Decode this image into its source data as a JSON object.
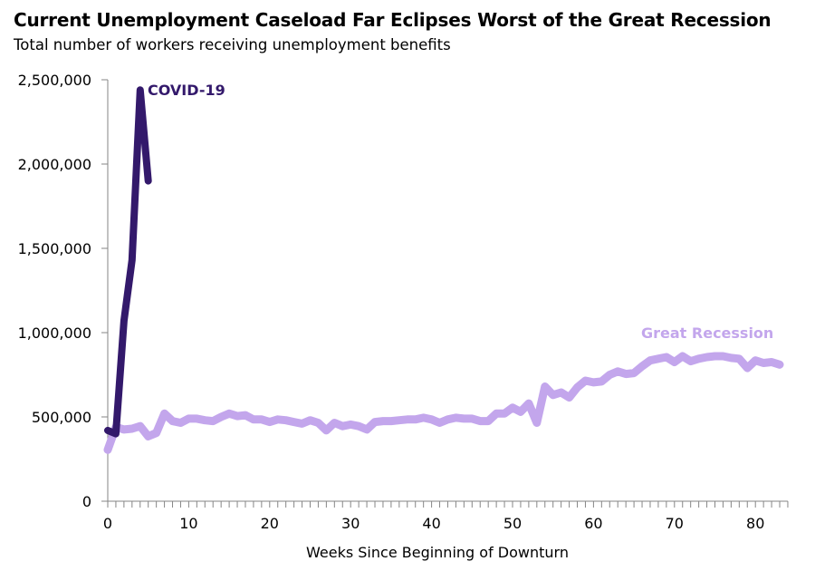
{
  "chart_data": {
    "type": "line",
    "title": "Current Unemployment Caseload Far Eclipses Worst of the Great Recession",
    "subtitle": "Total number of workers receiving unemployment benefits",
    "xlabel": "Weeks Since Beginning of Downturn",
    "ylabel": "",
    "xlim": [
      0,
      84
    ],
    "ylim": [
      0,
      2500000
    ],
    "x_ticks": [
      0,
      10,
      20,
      30,
      40,
      50,
      60,
      70,
      80
    ],
    "x_tick_labels": [
      "0",
      "10",
      "20",
      "30",
      "40",
      "50",
      "60",
      "70",
      "80"
    ],
    "y_ticks": [
      0,
      500000,
      1000000,
      1500000,
      2000000,
      2500000
    ],
    "y_tick_labels": [
      "0",
      "500,000",
      "1,000,000",
      "1,500,000",
      "2,000,000",
      "2,500,000"
    ],
    "grid": false,
    "legend": "inline labels",
    "series": [
      {
        "name": "Great Recession",
        "label": "Great Recession",
        "color": "#C3A6EC",
        "x": [
          0,
          1,
          2,
          3,
          4,
          5,
          6,
          7,
          8,
          9,
          10,
          11,
          12,
          13,
          14,
          15,
          16,
          17,
          18,
          19,
          20,
          21,
          22,
          23,
          24,
          25,
          26,
          27,
          28,
          29,
          30,
          31,
          32,
          33,
          34,
          35,
          36,
          37,
          38,
          39,
          40,
          41,
          42,
          43,
          44,
          45,
          46,
          47,
          48,
          49,
          50,
          51,
          52,
          53,
          54,
          55,
          56,
          57,
          58,
          59,
          60,
          61,
          62,
          63,
          64,
          65,
          66,
          67,
          68,
          69,
          70,
          71,
          72,
          73,
          74,
          75,
          76,
          77,
          78,
          79,
          80,
          81,
          82,
          83
        ],
        "values": [
          305000,
          440000,
          425000,
          430000,
          445000,
          385000,
          405000,
          520000,
          475000,
          465000,
          490000,
          490000,
          480000,
          475000,
          500000,
          520000,
          505000,
          510000,
          485000,
          485000,
          470000,
          485000,
          480000,
          470000,
          460000,
          480000,
          465000,
          420000,
          465000,
          445000,
          455000,
          445000,
          425000,
          470000,
          475000,
          475000,
          480000,
          485000,
          485000,
          495000,
          485000,
          465000,
          485000,
          495000,
          490000,
          490000,
          475000,
          475000,
          520000,
          520000,
          555000,
          530000,
          580000,
          465000,
          680000,
          630000,
          645000,
          615000,
          675000,
          715000,
          705000,
          710000,
          750000,
          770000,
          755000,
          760000,
          800000,
          835000,
          845000,
          855000,
          825000,
          860000,
          830000,
          845000,
          855000,
          860000,
          860000,
          850000,
          845000,
          790000,
          835000,
          820000,
          825000,
          810000
        ]
      },
      {
        "name": "COVID-19",
        "label": "COVID-19",
        "color": "#33196B",
        "x": [
          0,
          1,
          2,
          3,
          4,
          5
        ],
        "values": [
          420000,
          400000,
          1070000,
          1430000,
          2440000,
          1900000
        ]
      }
    ]
  }
}
